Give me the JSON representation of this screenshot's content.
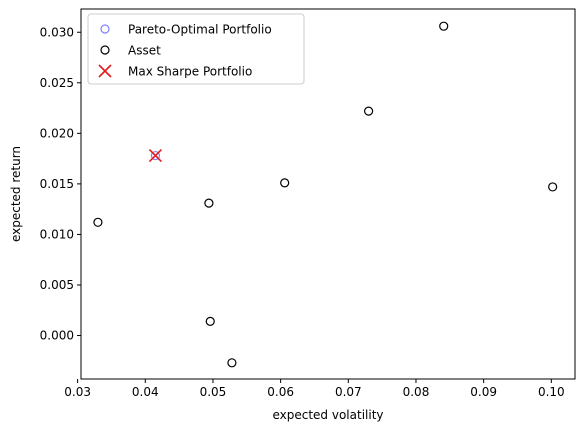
{
  "chart_data": {
    "type": "scatter",
    "title": "",
    "xlabel": "expected volatility",
    "ylabel": "expected return",
    "xlim": [
      0.0305,
      0.1035
    ],
    "ylim": [
      -0.0043,
      0.0323
    ],
    "xticks": [
      0.03,
      0.04,
      0.05,
      0.06,
      0.07,
      0.08,
      0.09,
      0.1
    ],
    "xtick_labels": [
      "0.03",
      "0.04",
      "0.05",
      "0.06",
      "0.07",
      "0.08",
      "0.09",
      "0.10"
    ],
    "yticks": [
      0.0,
      0.005,
      0.01,
      0.015,
      0.02,
      0.025,
      0.03
    ],
    "ytick_labels": [
      "0.000",
      "0.005",
      "0.010",
      "0.015",
      "0.020",
      "0.025",
      "0.030"
    ],
    "grid": false,
    "legend_position": "top-left",
    "series": [
      {
        "name": "Pareto-Optimal Portfolio",
        "marker": "hollow-circle",
        "color": "#8080ff",
        "points": [
          {
            "x": 0.0415,
            "y": 0.0178
          }
        ]
      },
      {
        "name": "Asset",
        "marker": "hollow-circle",
        "color": "#000000",
        "points": [
          {
            "x": 0.033,
            "y": 0.0112
          },
          {
            "x": 0.0494,
            "y": 0.0131
          },
          {
            "x": 0.0496,
            "y": 0.0014
          },
          {
            "x": 0.0528,
            "y": -0.0027
          },
          {
            "x": 0.0606,
            "y": 0.0151
          },
          {
            "x": 0.073,
            "y": 0.0222
          },
          {
            "x": 0.0841,
            "y": 0.0306
          },
          {
            "x": 0.1002,
            "y": 0.0147
          }
        ]
      },
      {
        "name": "Max Sharpe Portfolio",
        "marker": "x",
        "color": "#e31a1c",
        "points": [
          {
            "x": 0.0415,
            "y": 0.0178
          }
        ]
      }
    ]
  }
}
